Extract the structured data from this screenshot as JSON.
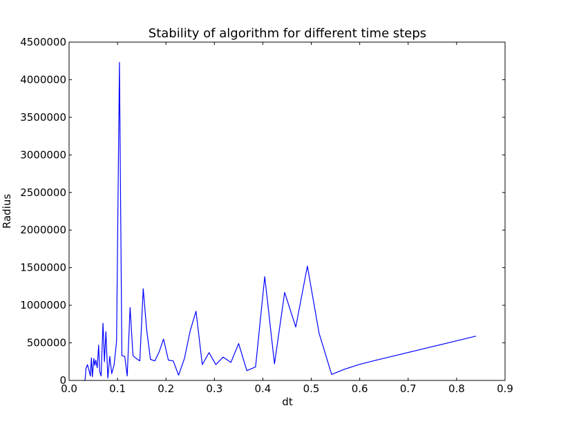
{
  "chart_data": {
    "type": "line",
    "title": "Stability of algorithm for different time steps",
    "xlabel": "dt",
    "ylabel": "Radius",
    "xlim": [
      0.0,
      0.9
    ],
    "ylim": [
      0,
      4500000
    ],
    "x_ticks": [
      "0.0",
      "0.1",
      "0.2",
      "0.3",
      "0.4",
      "0.5",
      "0.6",
      "0.7",
      "0.8",
      "0.9"
    ],
    "y_ticks": [
      "0",
      "500000",
      "1000000",
      "1500000",
      "2000000",
      "2500000",
      "3000000",
      "3500000",
      "4000000",
      "4500000"
    ],
    "grid": false,
    "line_color": "#0000ff",
    "series": [
      {
        "x": [
          0.03,
          0.033,
          0.035,
          0.038,
          0.041,
          0.044,
          0.046,
          0.048,
          0.051,
          0.053,
          0.055,
          0.058,
          0.061,
          0.063,
          0.066,
          0.07,
          0.073,
          0.076,
          0.08,
          0.084,
          0.088,
          0.093,
          0.098,
          0.104,
          0.109,
          0.115,
          0.12,
          0.126,
          0.132,
          0.139,
          0.146,
          0.153,
          0.16,
          0.168,
          0.177,
          0.186,
          0.195,
          0.205,
          0.215,
          0.226,
          0.238,
          0.25,
          0.262,
          0.275,
          0.289,
          0.303,
          0.318,
          0.334,
          0.35,
          0.367,
          0.385,
          0.404,
          0.424,
          0.445,
          0.468,
          0.492,
          0.516,
          0.542,
          0.569,
          0.598,
          0.628,
          0.84
        ],
        "y": [
          0,
          0,
          160000,
          210000,
          140000,
          60000,
          300000,
          50000,
          290000,
          200000,
          270000,
          170000,
          470000,
          120000,
          60000,
          760000,
          250000,
          650000,
          30000,
          320000,
          90000,
          210000,
          520000,
          4230000,
          330000,
          320000,
          60000,
          970000,
          330000,
          290000,
          260000,
          1220000,
          680000,
          280000,
          260000,
          380000,
          550000,
          270000,
          260000,
          70000,
          290000,
          660000,
          920000,
          210000,
          370000,
          210000,
          310000,
          240000,
          490000,
          130000,
          180000,
          1380000,
          220000,
          1170000,
          710000,
          1520000,
          630000,
          80000,
          150000,
          210000,
          260000,
          590000
        ]
      }
    ]
  }
}
